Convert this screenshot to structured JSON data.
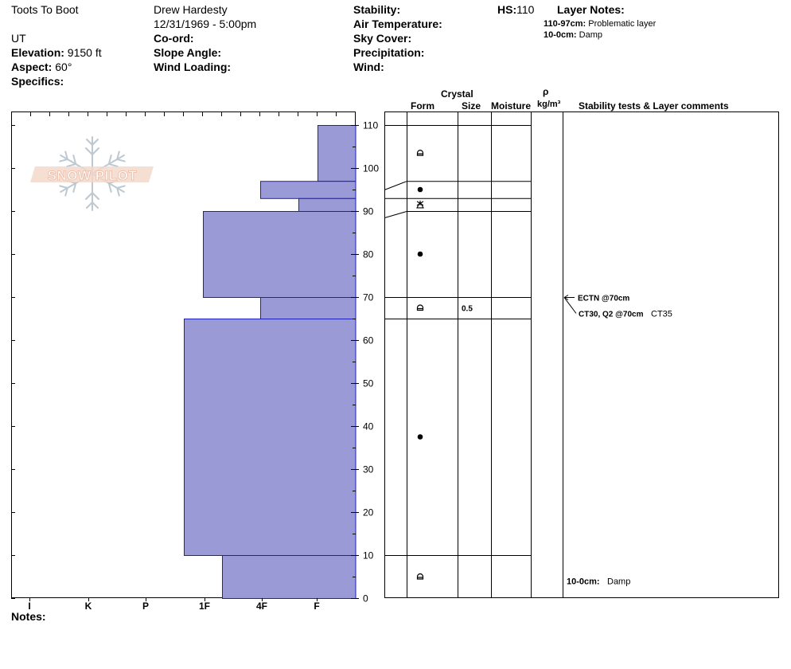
{
  "header": {
    "location_name": "Toots To Boot",
    "observer": "Drew Hardesty",
    "datetime": "12/31/1969 - 5:00pm",
    "state": "UT",
    "elevation_label": "Elevation:",
    "elevation_value": "9150 ft",
    "aspect_label": "Aspect:",
    "aspect_value": "60°",
    "specifics_label": "Specifics:",
    "coord_label": "Co-ord:",
    "slope_label": "Slope Angle:",
    "wind_loading_label": "Wind Loading:",
    "stability_label": "Stability:",
    "air_temp_label": "Air Temperature:",
    "sky_cover_label": "Sky Cover:",
    "precip_label": "Precipitation:",
    "wind_label": "Wind:",
    "hs_label": "HS:",
    "hs_value": "110",
    "layer_notes_label": "Layer Notes:",
    "layer_notes": [
      {
        "range": "110-97cm:",
        "text": "Problematic layer"
      },
      {
        "range": "10-0cm:",
        "text": "Damp"
      }
    ]
  },
  "logo": {
    "text": "SNOW PILOT"
  },
  "columns": {
    "crystal": "Crystal",
    "form": "Form",
    "size": "Size",
    "moisture": "Moisture",
    "rho": "ρ",
    "density_unit": "kg/m³",
    "stability": "Stability tests & Layer comments"
  },
  "chart_data": {
    "type": "snow-profile",
    "y_axis": {
      "min": 0,
      "max": 110,
      "ticks": [
        0,
        10,
        20,
        30,
        40,
        50,
        60,
        70,
        80,
        90,
        100,
        110
      ]
    },
    "x_axis": {
      "hardness_labels": [
        "I",
        "K",
        "P",
        "1F",
        "4F",
        "F"
      ]
    },
    "hardness_layers": [
      {
        "top": 110,
        "bottom": 97,
        "hardness": "F"
      },
      {
        "top": 97,
        "bottom": 93,
        "hardness": "4F"
      },
      {
        "top": 93,
        "bottom": 90,
        "hardness": "F+"
      },
      {
        "top": 90,
        "bottom": 70,
        "hardness": "1F"
      },
      {
        "top": 70,
        "bottom": 65,
        "hardness": "4F"
      },
      {
        "top": 65,
        "bottom": 10,
        "hardness": "1F+"
      },
      {
        "top": 10,
        "bottom": 0,
        "hardness": "1F-"
      }
    ],
    "layer_boundaries": [
      110,
      97,
      93,
      90,
      70,
      65,
      10
    ],
    "crystal_forms": [
      {
        "depth": 103.5,
        "symbol": "melt-form-icon"
      },
      {
        "depth": 95,
        "symbol": "round-grain-icon"
      },
      {
        "depth": 91.5,
        "symbol": "surface-hoar-icon"
      },
      {
        "depth": 80,
        "symbol": "round-grain-icon"
      },
      {
        "depth": 67.5,
        "symbol": "melt-form-icon"
      },
      {
        "depth": 37.5,
        "symbol": "round-grain-icon"
      },
      {
        "depth": 5,
        "symbol": "melt-form-icon"
      }
    ],
    "crystal_sizes": [
      {
        "depth": 67.5,
        "value": "0.5"
      }
    ],
    "stability_tests": [
      {
        "depth": 70,
        "label": "ECTN @70cm",
        "extra": ""
      },
      {
        "depth": 70,
        "label": "CT30, Q2 @70cm",
        "extra": "CT35"
      }
    ],
    "layer_comments": [
      {
        "depth": 4,
        "range": "10-0cm:",
        "text": "Damp"
      }
    ],
    "hardness_fill": "#9a9ad6",
    "hardness_stroke": "#1f1fbf"
  },
  "footer": {
    "notes_label": "Notes:"
  }
}
